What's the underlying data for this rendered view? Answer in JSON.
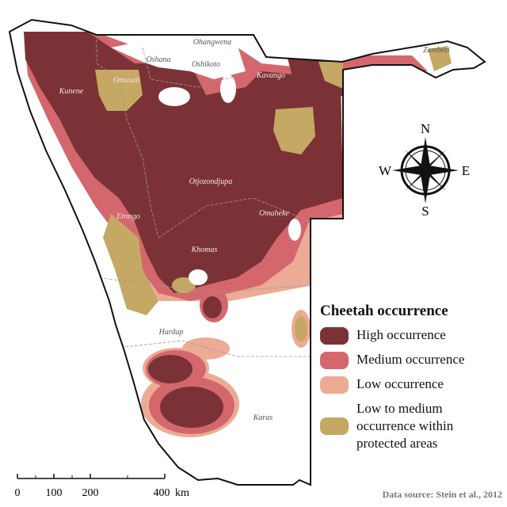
{
  "map": {
    "regions": [
      {
        "name": "Ohangwena",
        "style": "dark"
      },
      {
        "name": "Oshana",
        "style": "dark"
      },
      {
        "name": "Oshikoto",
        "style": "dark"
      },
      {
        "name": "Omusati",
        "style": "light"
      },
      {
        "name": "Kunene",
        "style": "light"
      },
      {
        "name": "Kavango",
        "style": "light"
      },
      {
        "name": "Zambezi",
        "style": "dark"
      },
      {
        "name": "Otjozondjupa",
        "style": "light"
      },
      {
        "name": "Erongo",
        "style": "light"
      },
      {
        "name": "Omaheke",
        "style": "light"
      },
      {
        "name": "Khomas",
        "style": "light"
      },
      {
        "name": "Hardap",
        "style": "dark"
      },
      {
        "name": "Karas",
        "style": "dark"
      }
    ]
  },
  "legend": {
    "title": "Cheetah occurrence",
    "items": [
      {
        "label": "High occurrence",
        "color": "#7b3236"
      },
      {
        "label": "Medium occurrence",
        "color": "#d4676e"
      },
      {
        "label": "Low occurrence",
        "color": "#ecab94"
      },
      {
        "label": "Low to medium occurrence within protected areas",
        "color": "#c4a863"
      }
    ]
  },
  "compass": {
    "n": "N",
    "s": "S",
    "e": "E",
    "w": "W"
  },
  "scale": {
    "ticks": [
      "0",
      "100",
      "200",
      "400"
    ],
    "unit": "km"
  },
  "source": "Data source: Stein et al., 2012",
  "colors": {
    "high": "#7b3236",
    "medium": "#d4676e",
    "low": "#ecab94",
    "protected": "#c4a863",
    "border": "#111111"
  }
}
